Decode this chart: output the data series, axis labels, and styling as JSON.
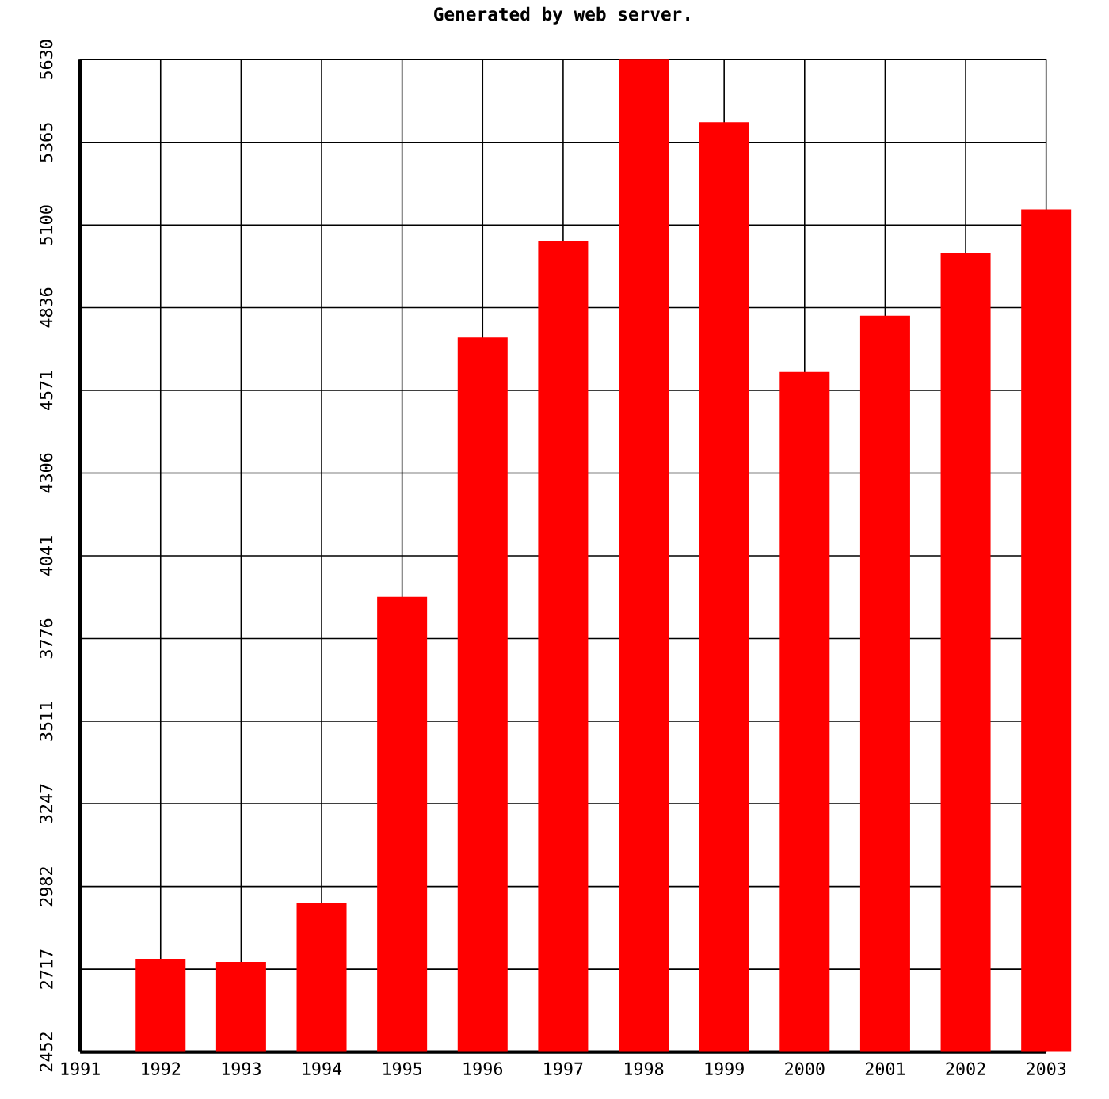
{
  "chart_data": {
    "type": "bar",
    "title": "Generated by web server.",
    "x": [
      1992,
      1993,
      1994,
      1995,
      1996,
      1997,
      1998,
      1999,
      2000,
      2001,
      2002,
      2003
    ],
    "values": [
      2750,
      2740,
      2930,
      3910,
      4740,
      5050,
      5630,
      5430,
      4630,
      4810,
      5010,
      5150
    ],
    "color": "#ff0000",
    "xlim": [
      1991,
      2003
    ],
    "xticks": [
      1991,
      1992,
      1993,
      1994,
      1995,
      1996,
      1997,
      1998,
      1999,
      2000,
      2001,
      2002,
      2003
    ],
    "ylim": [
      2452,
      5630
    ],
    "yticks": [
      2452,
      2717,
      2982,
      3247,
      3511,
      3776,
      4041,
      4306,
      4571,
      4836,
      5100,
      5365,
      5630
    ],
    "grid": true
  }
}
